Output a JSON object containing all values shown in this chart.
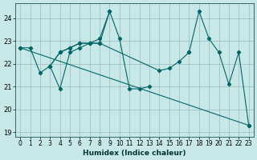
{
  "xlabel": "Humidex (Indice chaleur)",
  "bg_color": "#c8e8e8",
  "grid_color": "#99bbbb",
  "line_color": "#006666",
  "xlim": [
    -0.5,
    23.5
  ],
  "ylim": [
    18.8,
    24.65
  ],
  "yticks": [
    19,
    20,
    21,
    22,
    23,
    24
  ],
  "xticks": [
    0,
    1,
    2,
    3,
    4,
    5,
    6,
    7,
    8,
    9,
    10,
    11,
    12,
    13,
    14,
    15,
    16,
    17,
    18,
    19,
    20,
    21,
    22,
    23
  ],
  "lines": [
    {
      "x": [
        0,
        23
      ],
      "y": [
        22.7,
        19.3
      ]
    },
    {
      "x": [
        0,
        1,
        2,
        3,
        4,
        5,
        6,
        7,
        8,
        9
      ],
      "y": [
        22.7,
        22.7,
        21.6,
        21.9,
        20.9,
        22.5,
        22.7,
        22.9,
        23.1,
        24.3
      ]
    },
    {
      "x": [
        3,
        4,
        5,
        6,
        7,
        8,
        9,
        10,
        11,
        12,
        13
      ],
      "y": [
        21.9,
        22.5,
        22.7,
        22.9,
        22.9,
        22.9,
        24.3,
        23.1,
        20.9,
        20.9,
        21.0
      ]
    },
    {
      "x": [
        3,
        4,
        5,
        6,
        7,
        8,
        14,
        15,
        16,
        17,
        17,
        18,
        19,
        20,
        21,
        22,
        23
      ],
      "y": [
        21.9,
        22.5,
        22.7,
        22.9,
        22.9,
        22.9,
        21.7,
        21.8,
        22.1,
        22.5,
        22.5,
        24.3,
        23.1,
        22.5,
        21.1,
        22.5,
        19.3
      ]
    }
  ]
}
